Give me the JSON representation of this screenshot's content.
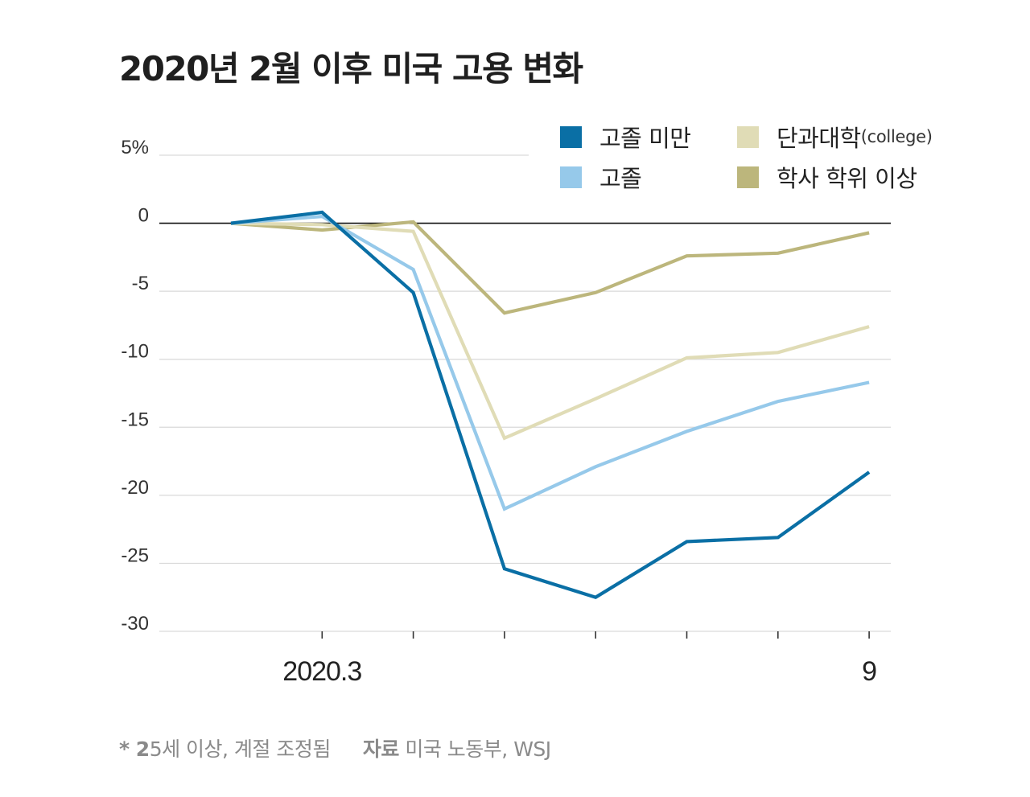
{
  "title": "2020년 2월 이후 미국 고용 변화",
  "footnote": {
    "note_mark": "* 2",
    "note_text": "5세 이상, 계절 조정됨",
    "source_label": "자료",
    "source_text": "미국 노동부, WSJ"
  },
  "legend": [
    {
      "label": "고졸 미만",
      "sub": "",
      "color": "#0a6fa5"
    },
    {
      "label": "단과대학",
      "sub": "(college)",
      "color": "#e0dcb6"
    },
    {
      "label": "고졸",
      "sub": "",
      "color": "#96c9ea"
    },
    {
      "label": "학사 학위 이상",
      "sub": "",
      "color": "#bcb67c"
    }
  ],
  "chart_data": {
    "type": "line",
    "title": "2020년 2월 이후 미국 고용 변화",
    "xlabel": "",
    "ylabel": "",
    "ylim": [
      -30,
      5
    ],
    "yticks": [
      5,
      0,
      -5,
      -10,
      -15,
      -20,
      -25,
      -30
    ],
    "ytick_labels": [
      "5%",
      "0",
      "-5",
      "-10",
      "-15",
      "-20",
      "-25",
      "-30"
    ],
    "x": [
      "2020.2",
      "2020.3",
      "2020.4",
      "2020.5",
      "2020.6",
      "2020.7",
      "2020.8",
      "2020.9"
    ],
    "xtick_labels": [
      "",
      "2020.3",
      "",
      "",
      "",
      "",
      "",
      "9"
    ],
    "grid": true,
    "legend_position": "top-right",
    "series": [
      {
        "name": "고졸 미만",
        "color": "#0a6fa5",
        "values": [
          0,
          0.8,
          -5.1,
          -25.4,
          -27.5,
          -23.4,
          -23.1,
          -18.3
        ]
      },
      {
        "name": "고졸",
        "color": "#96c9ea",
        "values": [
          0,
          0.5,
          -3.4,
          -21.0,
          -17.9,
          -15.3,
          -13.1,
          -11.7
        ]
      },
      {
        "name": "단과대학(college)",
        "color": "#e0dcb6",
        "values": [
          0,
          -0.1,
          -0.6,
          -15.8,
          -12.9,
          -9.9,
          -9.5,
          -7.6
        ]
      },
      {
        "name": "학사 학위 이상",
        "color": "#bcb67c",
        "values": [
          0,
          -0.5,
          0.1,
          -6.6,
          -5.1,
          -2.4,
          -2.2,
          -0.7
        ]
      }
    ]
  }
}
